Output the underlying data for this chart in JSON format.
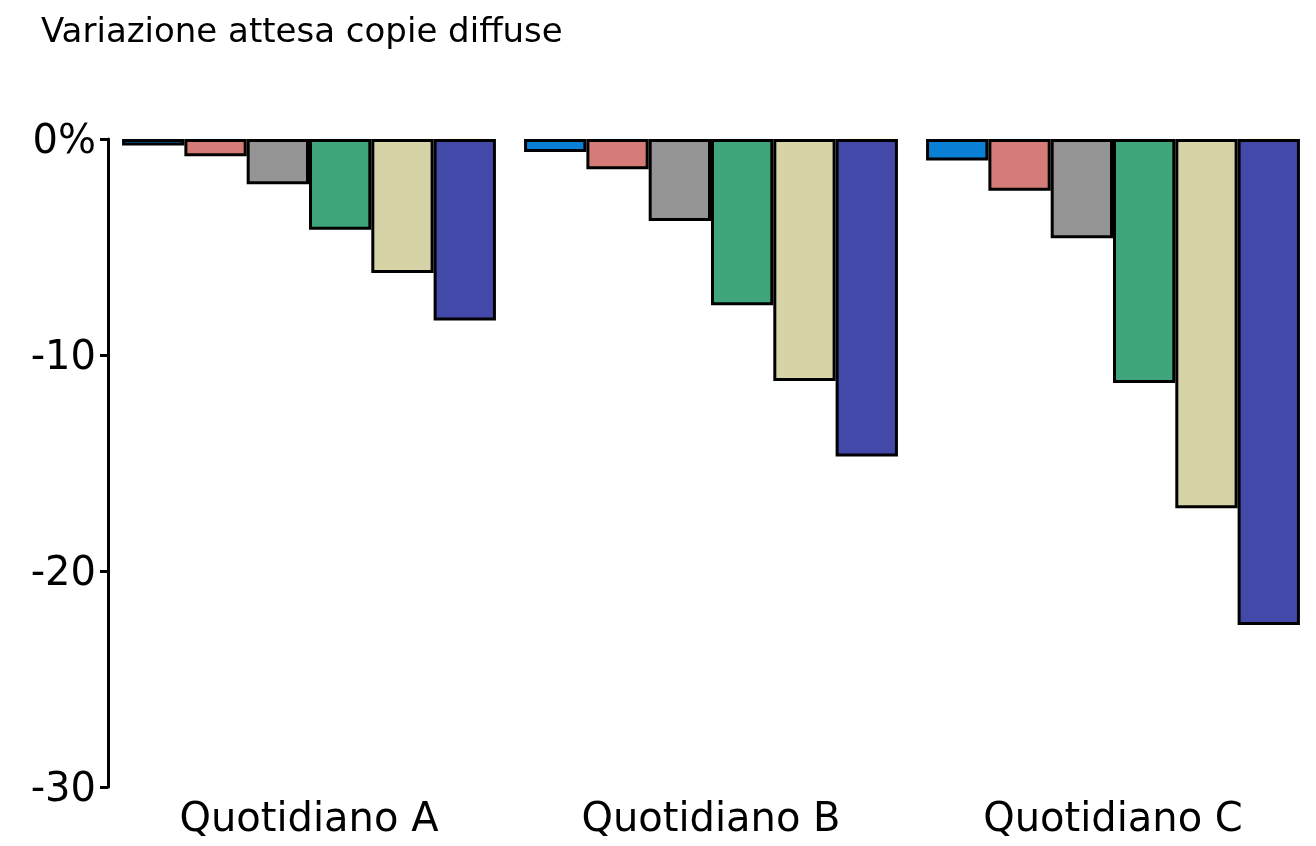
{
  "chart_data": {
    "type": "bar",
    "title": "Variazione attesa copie diffuse",
    "categories": [
      "Quotidiano A",
      "Quotidiano B",
      "Quotidiano C"
    ],
    "series": [
      {
        "color": "#0a7fd6",
        "values": [
          -0.3,
          -0.6,
          -1.0
        ]
      },
      {
        "color": "#d67c78",
        "values": [
          -0.8,
          -1.4,
          -2.4
        ]
      },
      {
        "color": "#949494",
        "values": [
          -2.1,
          -3.8,
          -4.6
        ]
      },
      {
        "color": "#3ea67a",
        "values": [
          -4.2,
          -7.7,
          -11.3
        ]
      },
      {
        "color": "#d6d3a6",
        "values": [
          -6.2,
          -11.2,
          -17.1
        ]
      },
      {
        "color": "#4349a8",
        "values": [
          -8.4,
          -14.7,
          -22.5
        ]
      }
    ],
    "ylim": [
      -30,
      0
    ],
    "yticks": [
      {
        "value": 0,
        "label": "0%"
      },
      -10,
      -20,
      -30
    ],
    "grid": false
  }
}
